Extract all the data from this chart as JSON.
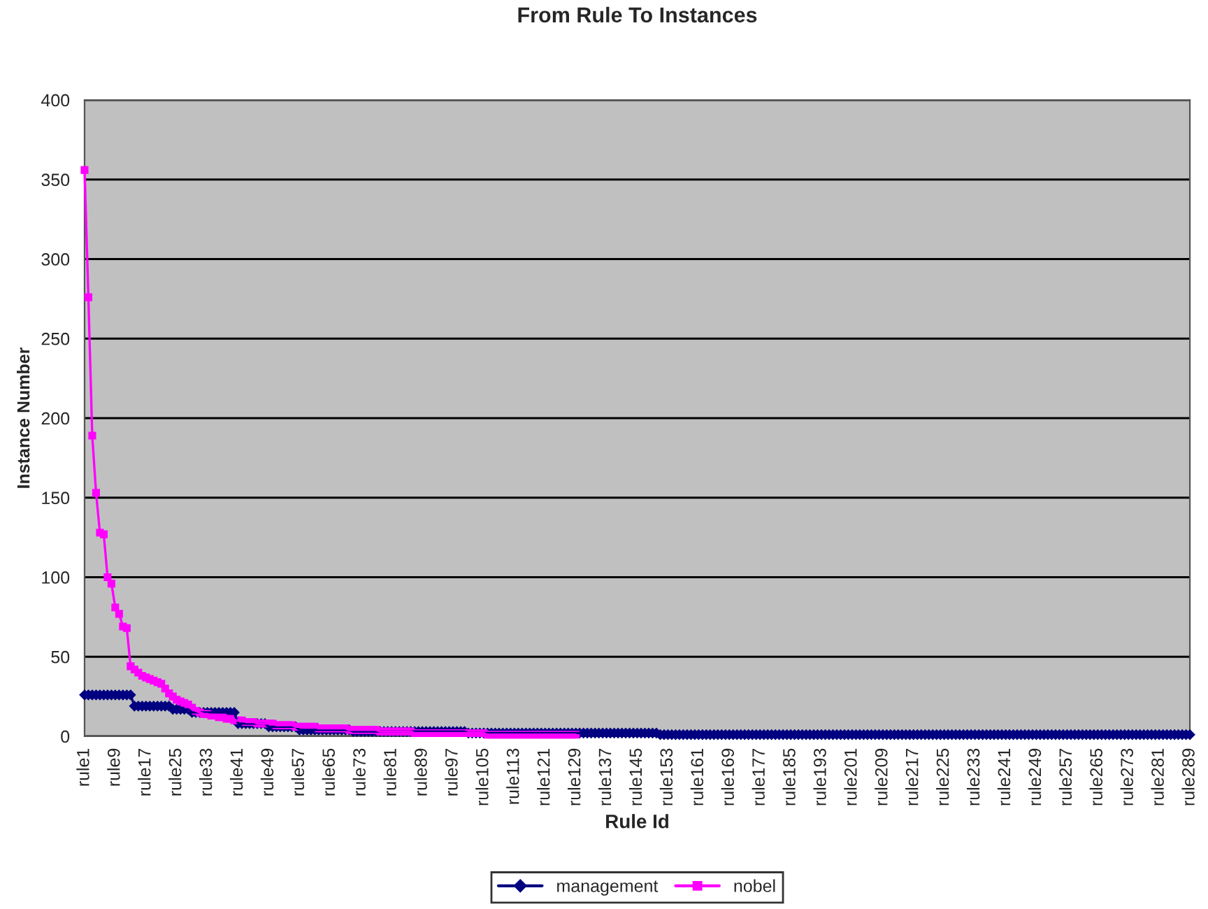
{
  "chart_data": {
    "type": "line",
    "title": "From Rule To Instances",
    "xlabel": "Rule Id",
    "ylabel": "Instance Number",
    "categories": [
      "rule1",
      null,
      null,
      null,
      null,
      null,
      null,
      null,
      "rule9",
      null,
      null,
      null,
      null,
      null,
      null,
      null,
      "rule17",
      null,
      null,
      null,
      null,
      null,
      null,
      null,
      "rule25",
      null,
      null,
      null,
      null,
      null,
      null,
      null,
      "rule33",
      null,
      null,
      null,
      null,
      null,
      null,
      null,
      "rule41",
      null,
      null,
      null,
      null,
      null,
      null,
      null,
      "rule49",
      null,
      null,
      null,
      null,
      null,
      null,
      null,
      "rule57",
      null,
      null,
      null,
      null,
      null,
      null,
      null,
      "rule65",
      null,
      null,
      null,
      null,
      null,
      null,
      null,
      "rule73",
      null,
      null,
      null,
      null,
      null,
      null,
      null,
      "rule81",
      null,
      null,
      null,
      null,
      null,
      null,
      null,
      "rule89",
      null,
      null,
      null,
      null,
      null,
      null,
      null,
      "rule97",
      null,
      null,
      null,
      null,
      null,
      null,
      null,
      "rule105",
      null,
      null,
      null,
      null,
      null,
      null,
      null,
      "rule113",
      null,
      null,
      null,
      null,
      null,
      null,
      null,
      "rule121",
      null,
      null,
      null,
      null,
      null,
      null,
      null,
      "rule129",
      null,
      null,
      null,
      null,
      null,
      null,
      null,
      "rule137",
      null,
      null,
      null,
      null,
      null,
      null,
      null,
      "rule145",
      null,
      null,
      null,
      null,
      null,
      null,
      null,
      "rule153",
      null,
      null,
      null,
      null,
      null,
      null,
      null,
      "rule161",
      null,
      null,
      null,
      null,
      null,
      null,
      null,
      "rule169",
      null,
      null,
      null,
      null,
      null,
      null,
      null,
      "rule177",
      null,
      null,
      null,
      null,
      null,
      null,
      null,
      "rule185",
      null,
      null,
      null,
      null,
      null,
      null,
      null,
      "rule193",
      null,
      null,
      null,
      null,
      null,
      null,
      null,
      "rule201",
      null,
      null,
      null,
      null,
      null,
      null,
      null,
      "rule209",
      null,
      null,
      null,
      null,
      null,
      null,
      null,
      "rule217",
      null,
      null,
      null,
      null,
      null,
      null,
      null,
      "rule225",
      null,
      null,
      null,
      null,
      null,
      null,
      null,
      "rule233",
      null,
      null,
      null,
      null,
      null,
      null,
      null,
      "rule241",
      null,
      null,
      null,
      null,
      null,
      null,
      null,
      "rule249",
      null,
      null,
      null,
      null,
      null,
      null,
      null,
      "rule257",
      null,
      null,
      null,
      null,
      null,
      null,
      null,
      "rule265",
      null,
      null,
      null,
      null,
      null,
      null,
      null,
      "rule273",
      null,
      null,
      null,
      null,
      null,
      null,
      null,
      "rule281",
      null,
      null,
      null,
      null,
      null,
      null,
      null,
      "rule289"
    ],
    "series": [
      {
        "name": "management",
        "color": "#000080",
        "marker": "diamond",
        "values": [
          26,
          26,
          26,
          26,
          26,
          26,
          26,
          26,
          26,
          26,
          26,
          26,
          26,
          19,
          19,
          19,
          19,
          19,
          19,
          19,
          19,
          19,
          19,
          17,
          17,
          17,
          17,
          17,
          15,
          15,
          15,
          15,
          15,
          15,
          15,
          15,
          15,
          15,
          15,
          15,
          8,
          8,
          8,
          8,
          8,
          8,
          8,
          8,
          6,
          6,
          6,
          6,
          6,
          6,
          6,
          6,
          4,
          4,
          4,
          4,
          4,
          4,
          4,
          4,
          4,
          4,
          4,
          4,
          4,
          4,
          3,
          3,
          3,
          3,
          3,
          3,
          3,
          3,
          3,
          3,
          3,
          3,
          3,
          3,
          3,
          3,
          3,
          3,
          3,
          3,
          3,
          3,
          3,
          3,
          3,
          3,
          3,
          3,
          3,
          3,
          2,
          2,
          2,
          2,
          2,
          2,
          2,
          2,
          2,
          2,
          2,
          2,
          2,
          2,
          2,
          2,
          2,
          2,
          2,
          2,
          2,
          2,
          2,
          2,
          2,
          2,
          2,
          2,
          2,
          2,
          2,
          2,
          2,
          2,
          2,
          2,
          2,
          2,
          2,
          2,
          2,
          2,
          2,
          2,
          2,
          2,
          2,
          2,
          2,
          2,
          1,
          1,
          1,
          1,
          1,
          1,
          1,
          1,
          1,
          1,
          1,
          1,
          1,
          1,
          1,
          1,
          1,
          1,
          1,
          1,
          1,
          1,
          1,
          1,
          1,
          1,
          1,
          1,
          1,
          1,
          1,
          1,
          1,
          1,
          1,
          1,
          1,
          1,
          1,
          1,
          1,
          1,
          1,
          1,
          1,
          1,
          1,
          1,
          1,
          1,
          1,
          1,
          1,
          1,
          1,
          1,
          1,
          1,
          1,
          1,
          1,
          1,
          1,
          1,
          1,
          1,
          1,
          1,
          1,
          1,
          1,
          1,
          1,
          1,
          1,
          1,
          1,
          1,
          1,
          1,
          1,
          1,
          1,
          1,
          1,
          1,
          1,
          1,
          1,
          1,
          1,
          1,
          1,
          1,
          1,
          1,
          1,
          1,
          1,
          1,
          1,
          1,
          1,
          1,
          1,
          1,
          1,
          1,
          1,
          1,
          1,
          1,
          1,
          1,
          1,
          1,
          1,
          1,
          1,
          1,
          1,
          1,
          1,
          1,
          1,
          1,
          1,
          1,
          1,
          1,
          1,
          1,
          1,
          1,
          1,
          1,
          1,
          1,
          1
        ]
      },
      {
        "name": "nobel",
        "color": "#ff00ff",
        "marker": "square",
        "values": [
          356,
          276,
          189,
          153,
          128,
          127,
          100,
          96,
          81,
          77,
          69,
          68,
          44,
          42,
          40,
          38,
          37,
          36,
          35,
          34,
          33,
          30,
          27,
          25,
          23,
          22,
          21,
          20,
          18,
          16,
          15,
          14,
          14,
          13,
          13,
          12,
          12,
          11,
          11,
          10,
          10,
          10,
          9,
          9,
          9,
          8,
          8,
          8,
          8,
          8,
          7,
          7,
          7,
          7,
          7,
          6,
          6,
          6,
          6,
          6,
          6,
          5,
          5,
          5,
          5,
          5,
          5,
          5,
          5,
          4,
          4,
          4,
          4,
          4,
          4,
          4,
          4,
          3,
          3,
          3,
          3,
          3,
          3,
          3,
          3,
          3,
          2,
          2,
          2,
          2,
          2,
          2,
          2,
          2,
          2,
          2,
          2,
          2,
          2,
          2,
          2,
          2,
          2,
          2,
          2,
          1,
          1,
          1,
          1,
          1,
          1,
          1,
          1,
          1,
          1,
          1,
          1,
          1,
          1,
          1,
          1,
          1,
          1,
          1,
          1,
          1,
          1,
          1,
          1,
          null,
          null,
          null,
          null,
          null,
          null,
          null,
          null,
          null,
          null,
          null,
          null,
          null,
          null,
          null,
          null,
          null,
          null,
          null,
          null,
          null,
          null,
          null,
          null,
          null,
          null,
          null,
          null,
          null,
          null,
          null,
          null,
          null,
          null,
          null,
          null,
          null,
          null,
          null,
          null,
          null,
          null,
          null,
          null,
          null,
          null,
          null,
          null,
          null,
          null,
          null,
          null,
          null,
          null,
          null,
          null,
          null,
          null,
          null,
          null,
          null,
          null,
          null,
          null,
          null,
          null,
          null,
          null,
          null,
          null,
          null,
          null,
          null,
          null,
          null,
          null,
          null,
          null,
          null,
          null,
          null,
          null,
          null,
          null,
          null,
          null,
          null,
          null,
          null,
          null,
          null,
          null,
          null,
          null,
          null,
          null,
          null,
          null,
          null,
          null,
          null,
          null,
          null,
          null,
          null,
          null,
          null,
          null,
          null,
          null,
          null,
          null,
          null,
          null,
          null,
          null,
          null,
          null,
          null,
          null,
          null,
          null,
          null,
          null,
          null,
          null,
          null,
          null,
          null,
          null,
          null,
          null,
          null,
          null,
          null,
          null,
          null,
          null,
          null,
          null,
          null,
          null,
          null,
          null,
          null,
          null,
          null,
          null,
          null,
          null,
          null,
          null,
          null,
          null,
          null,
          null,
          null,
          null,
          null,
          null
        ]
      }
    ],
    "ylim": [
      0,
      400
    ],
    "yticks": [
      0,
      50,
      100,
      150,
      200,
      250,
      300,
      350,
      400
    ],
    "grid": "y",
    "legend": "bottom"
  }
}
